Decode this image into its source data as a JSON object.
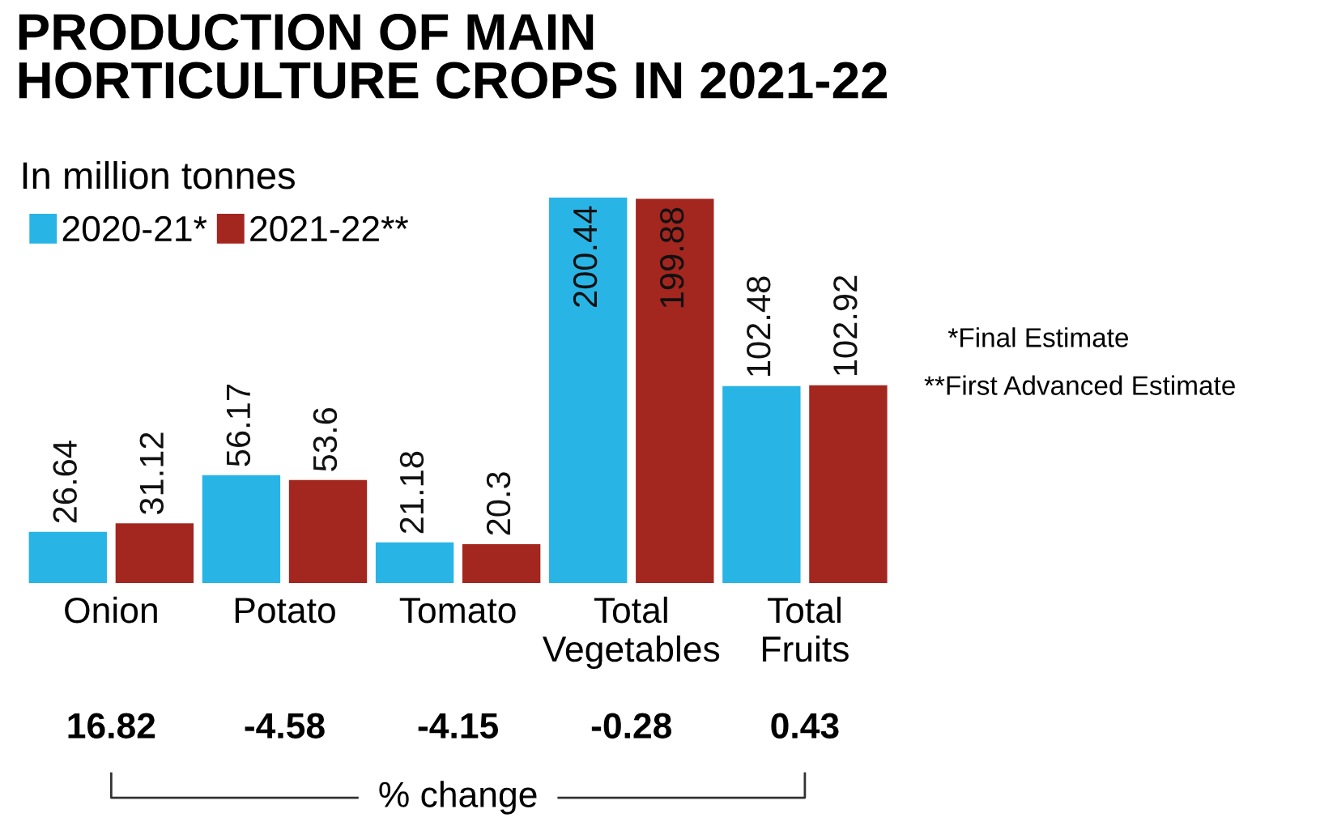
{
  "chart_data": {
    "type": "bar",
    "title": "PRODUCTION OF MAIN\nHORTICULTURE CROPS IN 2021-22",
    "subtitle": "In million tonnes",
    "categories": [
      "Onion",
      "Potato",
      "Tomato",
      "Total\nVegetables",
      "Total\nFruits"
    ],
    "series": [
      {
        "name": "2020-21*",
        "color": "#29b4e6",
        "values": [
          26.64,
          56.17,
          21.18,
          200.44,
          102.48
        ]
      },
      {
        "name": "2021-22**",
        "color": "#a3261f",
        "values": [
          31.12,
          53.6,
          20.3,
          199.88,
          102.92
        ]
      }
    ],
    "data_labels": true,
    "legend": "top left",
    "grid": false,
    "annotations": [
      "*Final Estimate",
      "**First Advanced Estimate",
      "16.82",
      "-4.58",
      "-4.15",
      "-0.28",
      "0.43",
      "% change"
    ]
  }
}
